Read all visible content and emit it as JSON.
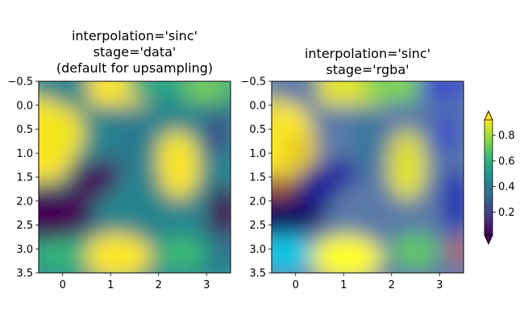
{
  "chart_data": [
    {
      "type": "heatmap",
      "title_lines": [
        "interpolation='sinc'",
        "stage='data'",
        "(default for upsampling)"
      ],
      "xlim": [
        -0.5,
        3.5
      ],
      "ylim": [
        3.5,
        -0.5
      ],
      "xticks": [
        0,
        1,
        2,
        3
      ],
      "xtick_labels": [
        "0",
        "1",
        "2",
        "3"
      ],
      "yticks": [
        -0.5,
        0.0,
        0.5,
        1.0,
        1.5,
        2.0,
        2.5,
        3.0,
        3.5
      ],
      "ytick_labels": [
        "−0.5",
        "0.0",
        "0.5",
        "1.0",
        "1.5",
        "2.0",
        "2.5",
        "3.0",
        "3.5"
      ],
      "colormap": "viridis",
      "interpolation": "sinc",
      "stage": "data"
    },
    {
      "type": "heatmap",
      "title_lines": [
        "interpolation='sinc'",
        "stage='rgba'"
      ],
      "xlim": [
        -0.5,
        3.5
      ],
      "ylim": [
        3.5,
        -0.5
      ],
      "xticks": [
        0,
        1,
        2,
        3
      ],
      "xtick_labels": [
        "0",
        "1",
        "2",
        "3"
      ],
      "yticks": [
        -0.5,
        0.0,
        0.5,
        1.0,
        1.5,
        2.0,
        2.5,
        3.0,
        3.5
      ],
      "ytick_labels": [
        "−0.5",
        "0.0",
        "0.5",
        "1.0",
        "1.5",
        "2.0",
        "2.5",
        "3.0",
        "3.5"
      ],
      "colormap": "viridis",
      "interpolation": "sinc",
      "stage": "rgba"
    }
  ],
  "colorbar": {
    "min": 0.02,
    "max": 0.92,
    "ticks": [
      0.2,
      0.4,
      0.6,
      0.8
    ],
    "tick_labels": [
      "0.2",
      "0.4",
      "0.6",
      "0.8"
    ],
    "extend": "both",
    "colors": [
      "#440154",
      "#482878",
      "#3e4989",
      "#31688e",
      "#26828e",
      "#1f9e89",
      "#35b779",
      "#6ece58",
      "#b5de2b",
      "#fde725"
    ]
  },
  "colors": {
    "rgba_stage_stops": [
      "#0c0090",
      "#0000c8",
      "#1e64e6",
      "#00c8e6",
      "#64e664",
      "#e6e61e",
      "#ffff28",
      "#e68c1e",
      "#c86432",
      "#320050"
    ]
  }
}
